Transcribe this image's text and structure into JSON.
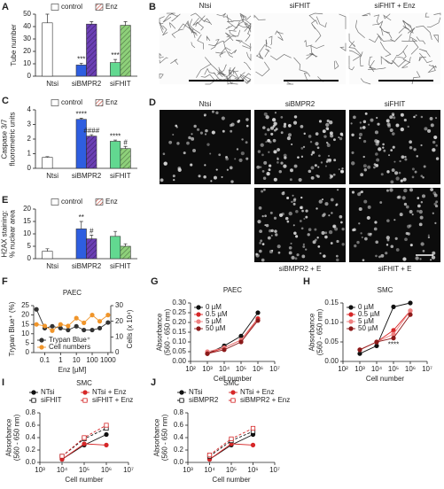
{
  "chart_data": [
    {
      "panel": "A",
      "type": "bar",
      "ylabel": "Tube number",
      "categories": [
        "Ntsi",
        "siBMPR2",
        "siFHIT"
      ],
      "ylim": [
        0,
        50
      ],
      "yticks": [
        0,
        10,
        20,
        30,
        40,
        50
      ],
      "series": [
        {
          "name": "control",
          "colors": [
            "#ffffff",
            "#2e5ee0",
            "#62d890"
          ],
          "values": [
            43,
            9,
            11
          ],
          "errors": [
            7,
            1.5,
            2.5
          ],
          "annotations": [
            null,
            "***",
            "***"
          ]
        },
        {
          "name": "Enz",
          "hatch": true,
          "hatch_color": "#c0392b",
          "colors": [
            "#ffffff",
            "#6b3fb5",
            "#8ed07a"
          ],
          "values": [
            null,
            42,
            41
          ],
          "errors": [
            null,
            2,
            3
          ]
        }
      ]
    },
    {
      "panel": "C",
      "type": "bar",
      "ylabel": [
        "Caspase 3/7",
        "fluorometric units"
      ],
      "categories": [
        "Ntsi",
        "siBMPR2",
        "siFHIT"
      ],
      "ylim": [
        0,
        4
      ],
      "yticks": [
        0,
        1,
        2,
        3,
        4
      ],
      "series": [
        {
          "name": "control",
          "colors": [
            "#ffffff",
            "#2e5ee0",
            "#62d890"
          ],
          "values": [
            0.75,
            3.35,
            1.85
          ],
          "errors": [
            0.05,
            0.08,
            0.08
          ],
          "annotations": [
            null,
            "****",
            "****"
          ]
        },
        {
          "name": "Enz",
          "hatch": true,
          "hatch_color": "#c0392b",
          "colors": [
            "#ffffff",
            "#6b3fb5",
            "#8ed07a"
          ],
          "values": [
            null,
            2.2,
            1.35
          ],
          "errors": [
            null,
            0.1,
            0.15
          ],
          "annotations": [
            null,
            "####",
            "#"
          ]
        }
      ]
    },
    {
      "panel": "E",
      "type": "bar",
      "ylabel": [
        "H2AX staining:",
        "% nuclear area"
      ],
      "categories": [
        "Ntsi",
        "siBMPR2",
        "siFHIT"
      ],
      "ylim": [
        0,
        20
      ],
      "yticks": [
        0,
        5,
        10,
        15,
        20
      ],
      "series": [
        {
          "name": "control",
          "colors": [
            "#ffffff",
            "#2e5ee0",
            "#62d890"
          ],
          "values": [
            3,
            12,
            9
          ],
          "errors": [
            1,
            3,
            2
          ],
          "annotations": [
            null,
            "**",
            null
          ]
        },
        {
          "name": "Enz",
          "hatch": true,
          "hatch_color": "#c0392b",
          "colors": [
            "#ffffff",
            "#6b3fb5",
            "#8ed07a"
          ],
          "values": [
            null,
            8,
            5
          ],
          "errors": [
            null,
            1.5,
            1
          ],
          "annotations": [
            null,
            "#",
            null
          ]
        }
      ]
    },
    {
      "panel": "F",
      "type": "line",
      "title": "PAEC",
      "xlabel": "Enz [µM]",
      "ylabel": "Trypan Blue⁺ (%)",
      "y2label": "Cells (x 10⁴)",
      "xscale": "log",
      "xlim": [
        0.02,
        1500
      ],
      "xticks": [
        0.1,
        1,
        10,
        100,
        1000
      ],
      "ylim": [
        0,
        25
      ],
      "yticks": [
        0,
        5,
        10,
        15,
        20,
        25
      ],
      "y2lim": [
        0,
        30
      ],
      "y2ticks": [
        0,
        10,
        20,
        30
      ],
      "legend": "lower left",
      "x": [
        0.03,
        0.1,
        0.3,
        1,
        3,
        10,
        30,
        100,
        300,
        1000
      ],
      "series": [
        {
          "name": "Trypan Blue⁺",
          "color": "#333333",
          "marker": "circle",
          "filled": true,
          "values": [
            23,
            13,
            14,
            13,
            12,
            14,
            12,
            12,
            13,
            16
          ]
        },
        {
          "name": "Cell numbers",
          "color": "#f0952a",
          "marker": "circle",
          "filled": true,
          "axis": "y2",
          "values": [
            18,
            17,
            14,
            18,
            17,
            22,
            19,
            24,
            20,
            24
          ]
        }
      ]
    },
    {
      "panel": "G",
      "type": "line",
      "title": "PAEC",
      "xlabel": "Cell number",
      "ylabel": [
        "Absorbance",
        "(560 - 650 nm)"
      ],
      "xscale": "log",
      "xlim": [
        100,
        10000000
      ],
      "xticks": [
        {
          "value": 100,
          "label": "10²"
        },
        {
          "value": 1000,
          "label": "10³"
        },
        {
          "value": 10000,
          "label": "10⁴"
        },
        {
          "value": 100000,
          "label": "10⁵"
        },
        {
          "value": 1000000,
          "label": "10⁶"
        },
        {
          "value": 10000000,
          "label": "10⁷"
        }
      ],
      "ylim": [
        0,
        0.3
      ],
      "yticks": [
        {
          "value": 0,
          "label": "0.00"
        },
        0.05,
        {
          "value": 0.1,
          "label": "0.10"
        },
        0.15,
        {
          "value": 0.2,
          "label": "0.20"
        },
        0.25,
        {
          "value": 0.3,
          "label": "0.30"
        }
      ],
      "legend": "upper left",
      "x": [
        1000,
        10000,
        100000,
        1000000
      ],
      "series": [
        {
          "name": "0 µM",
          "color": "#111111",
          "marker": "circle",
          "filled": true,
          "values": [
            0.04,
            0.08,
            0.13,
            0.25
          ]
        },
        {
          "name": "0.5 µM",
          "color": "#d62728",
          "marker": "circle",
          "filled": true,
          "values": [
            0.04,
            0.07,
            0.11,
            0.22
          ]
        },
        {
          "name": "5 µM",
          "color": "#f08080",
          "marker": "circle",
          "filled": true,
          "values": [
            0.05,
            0.07,
            0.11,
            0.21
          ]
        },
        {
          "name": "50 µM",
          "color": "#8b1a1a",
          "marker": "circle",
          "filled": true,
          "values": [
            0.04,
            0.06,
            0.1,
            0.21
          ]
        }
      ]
    },
    {
      "panel": "H",
      "type": "line",
      "title": "SMC",
      "xlabel": "Cell number",
      "ylabel": [
        "Absorbance",
        "(560 - 650 nm)"
      ],
      "xscale": "log",
      "xlim": [
        100,
        10000000
      ],
      "xticks": [
        {
          "value": 100,
          "label": "10²"
        },
        {
          "value": 1000,
          "label": "10³"
        },
        {
          "value": 10000,
          "label": "10⁴"
        },
        {
          "value": 100000,
          "label": "10⁵"
        },
        {
          "value": 1000000,
          "label": "10⁶"
        },
        {
          "value": 10000000,
          "label": "10⁷"
        }
      ],
      "ylim": [
        0,
        0.15
      ],
      "yticks": [
        {
          "value": 0,
          "label": "0.00"
        },
        0.05,
        {
          "value": 0.1,
          "label": "0.10"
        },
        0.15
      ],
      "legend": "upper left",
      "x": [
        1000,
        10000,
        100000,
        1000000
      ],
      "series": [
        {
          "name": "0 µM",
          "color": "#111111",
          "marker": "circle",
          "filled": true,
          "values": [
            0.02,
            0.04,
            0.14,
            0.15
          ]
        },
        {
          "name": "0.5 µM",
          "color": "#d62728",
          "marker": "circle",
          "filled": true,
          "values": [
            0.03,
            0.05,
            0.08,
            0.13
          ]
        },
        {
          "name": "5 µM",
          "color": "#f08080",
          "marker": "circle",
          "filled": true,
          "values": [
            0.03,
            0.05,
            0.07,
            0.13
          ]
        },
        {
          "name": "50 µM",
          "color": "#8b1a1a",
          "marker": "circle",
          "filled": true,
          "values": [
            0.03,
            0.05,
            0.06,
            0.12
          ],
          "annotations": [
            null,
            null,
            "****",
            null
          ]
        }
      ]
    },
    {
      "panel": "I",
      "type": "line",
      "title": "SMC",
      "xlabel": "Cell number",
      "ylabel": [
        "Absorbance",
        "(560 - 650 nm)"
      ],
      "xscale": "log",
      "xlim": [
        1000,
        10000000
      ],
      "xticks": [
        {
          "value": 1000,
          "label": "10³"
        },
        {
          "value": 10000,
          "label": "10⁴"
        },
        {
          "value": 100000,
          "label": "10⁵"
        },
        {
          "value": 1000000,
          "label": "10⁶"
        },
        {
          "value": 10000000,
          "label": "10⁷"
        }
      ],
      "ylim": [
        0,
        0.8
      ],
      "yticks": [
        {
          "value": 0,
          "label": "0.0"
        },
        0.2,
        0.4,
        0.6,
        0.8
      ],
      "legend": "top",
      "x": [
        10000,
        100000,
        1000000
      ],
      "series": [
        {
          "name": "NTsi",
          "color": "#111111",
          "marker": "circle",
          "filled": true,
          "values": [
            0.05,
            0.28,
            0.45
          ]
        },
        {
          "name": "NTsi + Enz",
          "color": "#d62728",
          "marker": "circle",
          "filled": true,
          "values": [
            0.05,
            0.3,
            0.28
          ]
        },
        {
          "name": "siFHIT",
          "color": "#111111",
          "marker": "square",
          "filled": false,
          "dash": true,
          "values": [
            0.1,
            0.38,
            0.55
          ]
        },
        {
          "name": "siFHIT + Enz",
          "color": "#d62728",
          "marker": "square",
          "filled": false,
          "dash": true,
          "values": [
            0.1,
            0.4,
            0.6
          ]
        }
      ]
    },
    {
      "panel": "J",
      "type": "line",
      "title": "SMC",
      "xlabel": "Cell number",
      "ylabel": [
        "Absorbance",
        "(560 - 650 nm)"
      ],
      "xscale": "log",
      "xlim": [
        1000,
        10000000
      ],
      "xticks": [
        {
          "value": 1000,
          "label": "10³"
        },
        {
          "value": 10000,
          "label": "10⁴"
        },
        {
          "value": 100000,
          "label": "10⁵"
        },
        {
          "value": 1000000,
          "label": "10⁶"
        },
        {
          "value": 10000000,
          "label": "10⁷"
        }
      ],
      "ylim": [
        0,
        0.8
      ],
      "yticks": [
        {
          "value": 0,
          "label": "0.0"
        },
        0.2,
        0.4,
        0.6,
        0.8
      ],
      "legend": "top",
      "x": [
        10000,
        100000,
        1000000
      ],
      "series": [
        {
          "name": "NTsi",
          "color": "#111111",
          "marker": "circle",
          "filled": true,
          "values": [
            0.05,
            0.28,
            0.45
          ]
        },
        {
          "name": "NTsi + Enz",
          "color": "#d62728",
          "marker": "circle",
          "filled": true,
          "values": [
            0.05,
            0.3,
            0.28
          ]
        },
        {
          "name": "siBMPR2",
          "color": "#111111",
          "marker": "square",
          "filled": false,
          "dash": true,
          "values": [
            0.1,
            0.35,
            0.5
          ]
        },
        {
          "name": "siBMPR2 + Enz",
          "color": "#d62728",
          "marker": "square",
          "filled": false,
          "dash": true,
          "values": [
            0.12,
            0.38,
            0.55
          ]
        }
      ]
    }
  ],
  "image_panels": [
    {
      "panel": "B",
      "labels": [
        "Ntsi",
        "siFHIT",
        "siFHIT + Enz"
      ]
    },
    {
      "panel": "D",
      "labels": [
        "Ntsi",
        "siBMPR2",
        "siFHIT",
        "siBMPR2 + E",
        "siFHIT + E"
      ]
    }
  ]
}
